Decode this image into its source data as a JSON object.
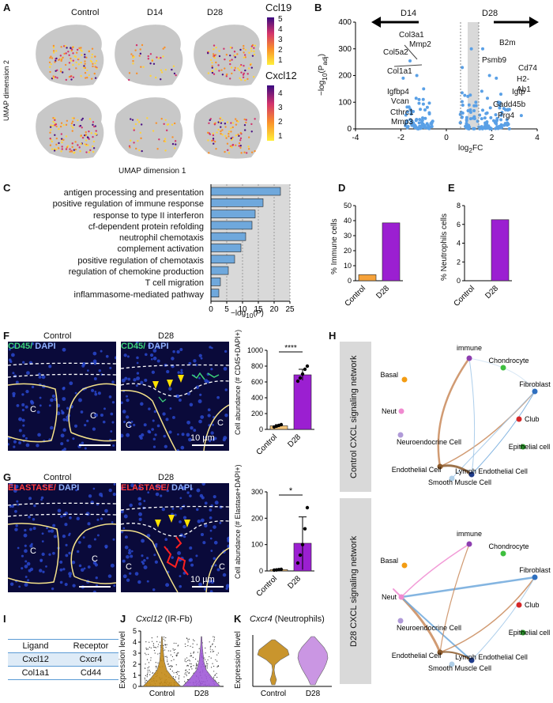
{
  "panels": {
    "A": {
      "label": "A",
      "columns": [
        "Control",
        "D14",
        "D28"
      ],
      "x_axis": "UMAP dimension 1",
      "y_axis": "UMAP dimension 2",
      "genes": [
        {
          "name": "Ccl19",
          "ticks": [
            "5",
            "4",
            "3",
            "2",
            "1"
          ]
        },
        {
          "name": "Cxcl12",
          "ticks": [
            "4",
            "3",
            "2",
            "1"
          ]
        }
      ]
    },
    "B": {
      "label": "B",
      "arrow_left": "D14",
      "arrow_right": "D28",
      "ylabel": "−log10(Padj)",
      "xlabel": "log2FC",
      "left_genes": [
        "Col3a1",
        "Mmp2",
        "Col5a2",
        "Col1a1",
        "Igfbp4",
        "Vcan",
        "Cthrc1",
        "Mmp3"
      ],
      "right_genes": [
        "B2m",
        "Psmb9",
        "Cd74",
        "H2-Ab1",
        "Igtp",
        "Gadd45b",
        "Prg4"
      ]
    },
    "C": {
      "label": "C"
    },
    "D": {
      "label": "D"
    },
    "E": {
      "label": "E"
    },
    "F": {
      "label": "F",
      "img_titles": [
        "Control",
        "D28"
      ],
      "stain_main": "CD45/",
      "stain_dapi": " DAPI",
      "c_marks": [
        "C",
        "C",
        "C",
        "C"
      ],
      "scale": "10 µm",
      "sig": "****"
    },
    "G": {
      "label": "G",
      "img_titles": [
        "Control",
        "D28"
      ],
      "stain_main": "ELASTASE/",
      "stain_dapi": " DAPI",
      "c_marks": [
        "C",
        "C",
        "C",
        "C"
      ],
      "scale": "10 µm",
      "sig": "*"
    },
    "H": {
      "label": "H",
      "nets": [
        {
          "title": "Control CXCL signaling network"
        },
        {
          "title": "D28  CXCL signaling network"
        }
      ],
      "nodes": [
        "immune",
        "Chondrocyte",
        "Basal",
        "Fibroblast",
        "Neut",
        "Club",
        "Neuroendocrine Cell",
        "Epithelial cell",
        "Endothelial Cell",
        "Lymph Endothelial Cell",
        "Smooth Muscle Cell"
      ]
    },
    "I": {
      "label": "I",
      "headers": [
        "Ligand",
        "Receptor"
      ],
      "rows": [
        [
          "Cxcl12",
          "Cxcr4"
        ],
        [
          "Col1a1",
          "Cd44"
        ]
      ]
    },
    "J": {
      "label": "J",
      "gene": "Cxcl12",
      "subtitle": " (IR-Fb)"
    },
    "K": {
      "label": "K",
      "gene": "Cxcr4",
      "subtitle": " (Neutrophils)"
    }
  },
  "colors": {
    "blue_bar": "#6fa8dc",
    "orange": "#f6a23a",
    "purple": "#9b1fd1",
    "grey_bg": "#d9d9d9"
  },
  "chart_data": [
    {
      "id": "C",
      "type": "bar",
      "orientation": "horizontal",
      "categories": [
        "antigen processing and presentation",
        "positive regulation of immune response",
        "response to type II interferon",
        "cf-dependent protein refolding",
        "neutrophil chemotaxis",
        "complement activation",
        "positive regulation of chemotaxis",
        "regulation of chemokine production",
        "T cell migration",
        "inflammasome-mediated pathway"
      ],
      "values": [
        22,
        16.5,
        14,
        13,
        11,
        9.5,
        7.5,
        5.5,
        3,
        2.5
      ],
      "xlabel": "−log10(P)",
      "xlim": [
        0,
        25
      ],
      "xticks": [
        0,
        5,
        10,
        15,
        20,
        25
      ]
    },
    {
      "id": "D",
      "type": "bar",
      "categories": [
        "Control",
        "D28"
      ],
      "values": [
        4,
        38.5
      ],
      "ylabel": "% Immune cells",
      "ylim": [
        0,
        50
      ],
      "yticks": [
        0,
        10,
        20,
        30,
        40,
        50
      ]
    },
    {
      "id": "E",
      "type": "bar",
      "categories": [
        "Control",
        "D28"
      ],
      "values": [
        0,
        6.5
      ],
      "ylabel": "% Neutrophils cells",
      "ylim": [
        0,
        8
      ],
      "yticks": [
        0,
        2,
        4,
        6,
        8
      ]
    },
    {
      "id": "F",
      "type": "bar",
      "categories": [
        "Control",
        "D28"
      ],
      "values": [
        45,
        690
      ],
      "points": [
        [
          30,
          40,
          50,
          60
        ],
        [
          610,
          650,
          700,
          760,
          800
        ]
      ],
      "ylabel": "Cell abundance (# CD45+DAPI+)",
      "ylim": [
        0,
        1000
      ],
      "yticks": [
        0,
        200,
        400,
        600,
        800,
        1000
      ]
    },
    {
      "id": "G",
      "type": "bar",
      "categories": [
        "Control",
        "D28"
      ],
      "values": [
        5,
        105
      ],
      "points": [
        [
          3,
          4,
          5,
          6
        ],
        [
          30,
          60,
          100,
          160,
          240
        ]
      ],
      "ylabel": "Cell abundance (# Elastase+DAPI+)",
      "ylim": [
        0,
        300
      ],
      "yticks": [
        0,
        100,
        200,
        300
      ]
    },
    {
      "id": "B",
      "type": "scatter",
      "xlabel": "log2FC",
      "ylabel": "−log10(Padj)",
      "xlim": [
        -4,
        4
      ],
      "ylim": [
        0,
        400
      ],
      "xticks": [
        -4,
        -2,
        0,
        2,
        4
      ],
      "yticks": [
        0,
        100,
        200,
        300,
        400
      ]
    },
    {
      "id": "J",
      "type": "violin",
      "categories": [
        "Control",
        "D28"
      ],
      "ylabel": "Expression level",
      "ylim": [
        0,
        5
      ],
      "yticks": [
        0,
        1,
        2,
        3,
        4,
        5
      ]
    },
    {
      "id": "K",
      "type": "violin",
      "categories": [
        "Control",
        "D28"
      ],
      "ylabel": "Expression level",
      "yticks": []
    }
  ]
}
